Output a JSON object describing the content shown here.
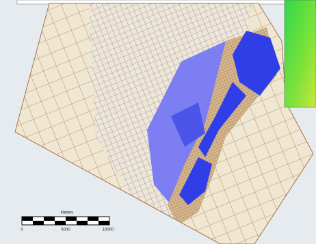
{
  "scale_bar": {
    "title": "Meters",
    "labels": [
      "0",
      "5000",
      "10000"
    ]
  }
}
